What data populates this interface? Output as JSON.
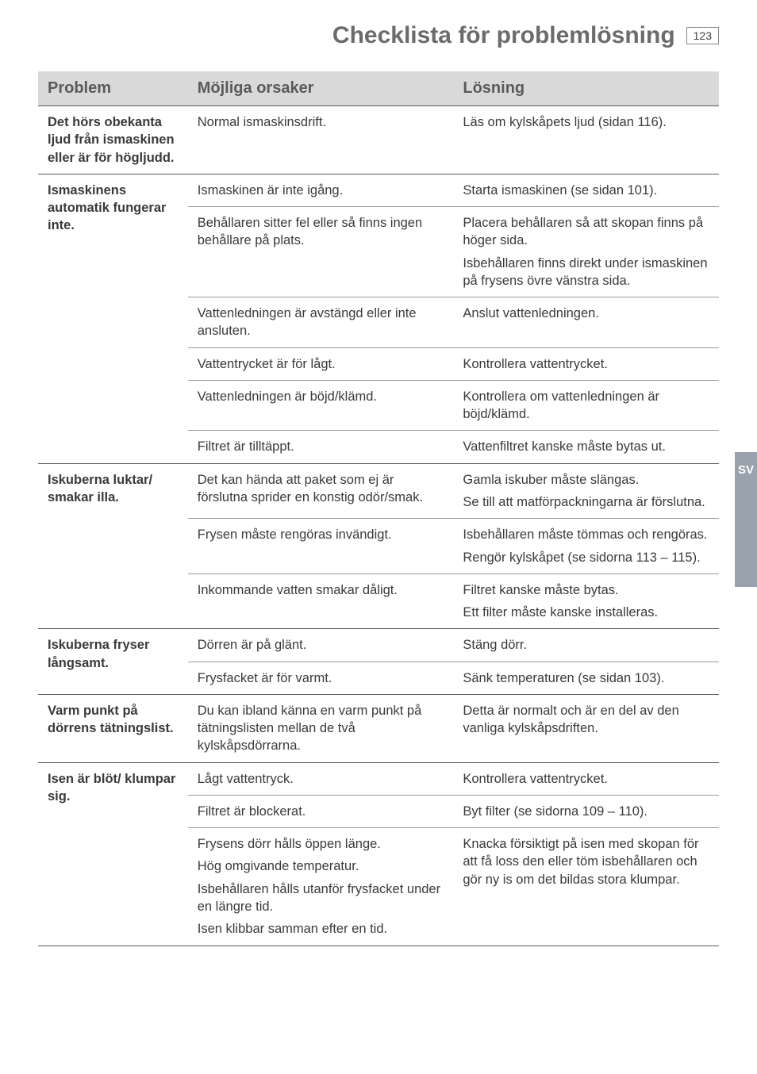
{
  "header": {
    "title": "Checklista för problemlösning",
    "page_number": "123"
  },
  "side_tab": "SV",
  "columns": {
    "problem": "Problem",
    "cause": "Möjliga orsaker",
    "solution": "Lösning"
  },
  "rows": {
    "r1": {
      "problem": "Det hörs obekanta ljud från ismaskinen eller är för högljudd.",
      "cause": "Normal ismaskinsdrift.",
      "solution": "Läs om kylskåpets ljud (sidan 116)."
    },
    "r2": {
      "problem": "Ismaskinens automatik fungerar inte.",
      "c1": "Ismaskinen är inte igång.",
      "s1": "Starta ismaskinen (se sidan 101).",
      "c2": "Behållaren sitter fel eller så finns ingen behållare på plats.",
      "s2a": "Placera behållaren så att skopan finns på höger sida.",
      "s2b": "Isbehållaren finns direkt under ismaskinen på frysens övre vänstra sida.",
      "c3": "Vattenledningen är avstängd eller inte ansluten.",
      "s3": "Anslut vattenledningen.",
      "c4": "Vattentrycket är för lågt.",
      "s4": "Kontrollera vattentrycket.",
      "c5": "Vattenledningen är böjd/klämd.",
      "s5": "Kontrollera om vattenledningen är böjd/klämd.",
      "c6": "Filtret är tilltäppt.",
      "s6": "Vattenfiltret kanske måste bytas ut."
    },
    "r3": {
      "problem": "Iskuberna luktar/ smakar illa.",
      "c1": "Det kan hända att paket som ej är förslutna sprider en konstig odör/smak.",
      "s1a": "Gamla iskuber måste slängas.",
      "s1b": "Se till att matförpackningarna är förslutna.",
      "c2": "Frysen måste rengöras invändigt.",
      "s2a": "Isbehållaren måste tömmas och rengöras.",
      "s2b": "Rengör kylskåpet (se sidorna 113 – 115).",
      "c3": "Inkommande vatten smakar dåligt.",
      "s3a": "Filtret kanske måste bytas.",
      "s3b": "Ett filter måste kanske installeras."
    },
    "r4": {
      "problem": "Iskuberna fryser långsamt.",
      "c1": "Dörren är på glänt.",
      "s1": "Stäng dörr.",
      "c2": "Frysfacket är för varmt.",
      "s2": "Sänk temperaturen (se sidan 103)."
    },
    "r5": {
      "problem": "Varm punkt på dörrens tätningslist.",
      "cause": "Du kan ibland känna en varm punkt på tätningslisten mellan de två kylskåpsdörrarna.",
      "solution": "Detta är normalt och är en del av den vanliga kylskåpsdriften."
    },
    "r6": {
      "problem": "Isen är blöt/ klumpar sig.",
      "c1": "Lågt vattentryck.",
      "s1": "Kontrollera vattentrycket.",
      "c2": "Filtret är blockerat.",
      "s2": "Byt filter (se sidorna 109 – 110).",
      "c3a": "Frysens dörr hålls öppen länge.",
      "c3b": "Hög omgivande temperatur.",
      "c3c": "Isbehållaren hålls utanför frysfacket under en längre tid.",
      "c3d": "Isen klibbar samman efter en tid.",
      "s3": "Knacka försiktigt på isen med skopan för att få loss den eller töm isbehållaren och gör ny is om det bildas stora klumpar."
    }
  }
}
